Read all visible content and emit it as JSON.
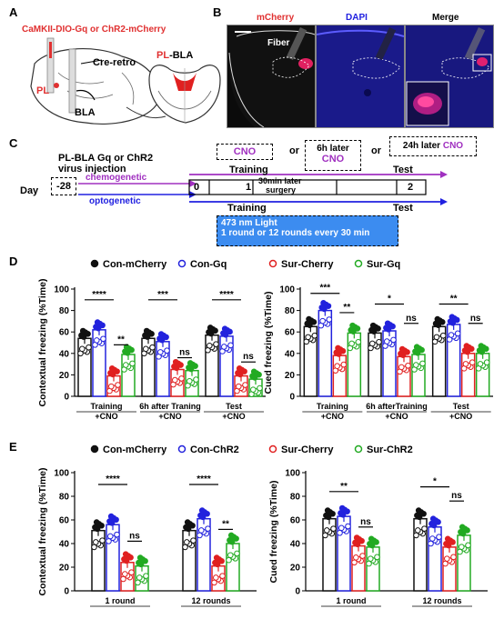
{
  "panels": {
    "a": "A",
    "b": "B",
    "c": "C",
    "d": "D",
    "e": "E"
  },
  "panelA": {
    "title": "CaMKII-DIO-Gq or ChR2-mCherry",
    "creretro": "Cre-retro",
    "pl": "PL",
    "bla": "BLA",
    "plbla_pl": "PL",
    "plbla_rest": "-BLA"
  },
  "panelB": {
    "mcherry": "mCherry",
    "dapi": "DAPI",
    "merge": "Merge",
    "fiber": "Fiber"
  },
  "panelC": {
    "title1": "PL-BLA Gq or ChR2",
    "title2": "virus injection",
    "day": "Day",
    "d28": "-28",
    "chemogenetic": "chemogenetic",
    "optogenetic": "optogenetic",
    "cno1": "CNO",
    "or1": "or",
    "h6": "6h later",
    "cno2": "CNO",
    "or2": "or",
    "h24": "24h later",
    "cno3": "CNO",
    "d0": "0",
    "d1": "1",
    "d2": "2",
    "training1": "Training",
    "test1": "Test",
    "surgery1": "30min later",
    "surgery2": "surgery",
    "training2": "Training",
    "test2": "Test",
    "light1": "473 nm Light",
    "light2": "1 round or 12 rounds every 30 min"
  },
  "colors": {
    "con": "#111111",
    "gq": "#2222dd",
    "cherry": "#e02020",
    "sur": "#22aa22",
    "lightbox": "#3c8cf0"
  },
  "chart_data": [
    {
      "id": "D-left",
      "type": "bar",
      "ylabel": "Contextual freezing (%Time)",
      "ylim": [
        0,
        100
      ],
      "yticks": [
        0,
        20,
        40,
        60,
        80,
        100
      ],
      "legend": [
        "Con-mCherry",
        "Con-Gq",
        "Sur-Cherry",
        "Sur-Gq"
      ],
      "groups": [
        "Training\n+CNO",
        "6h after Traning\n+CNO",
        "Test\n+CNO"
      ],
      "series": [
        {
          "name": "Con-mCherry",
          "values": [
            54,
            54,
            57
          ]
        },
        {
          "name": "Con-Gq",
          "values": [
            62,
            51,
            56
          ]
        },
        {
          "name": "Sur-Cherry",
          "values": [
            19,
            25,
            19
          ]
        },
        {
          "name": "Sur-Gq",
          "values": [
            39,
            24,
            16
          ]
        }
      ],
      "sig": [
        {
          "g": 0,
          "a": 0,
          "b": 2,
          "label": "****",
          "y": 90
        },
        {
          "g": 0,
          "a": 2,
          "b": 3,
          "label": "**",
          "y": 48
        },
        {
          "g": 1,
          "a": 0,
          "b": 2,
          "label": "***",
          "y": 90
        },
        {
          "g": 1,
          "a": 2,
          "b": 3,
          "label": "ns",
          "y": 36
        },
        {
          "g": 2,
          "a": 0,
          "b": 2,
          "label": "****",
          "y": 90
        },
        {
          "g": 2,
          "a": 2,
          "b": 3,
          "label": "ns",
          "y": 32
        }
      ]
    },
    {
      "id": "D-right",
      "type": "bar",
      "ylabel": "Cued freezing (%Time)",
      "ylim": [
        0,
        100
      ],
      "yticks": [
        0,
        20,
        40,
        60,
        80,
        100
      ],
      "groups": [
        "Training\n+CNO",
        "6h afterTraining\n+CNO",
        "Test\n+CNO"
      ],
      "series": [
        {
          "name": "Con-mCherry",
          "values": [
            65,
            59,
            65
          ]
        },
        {
          "name": "Con-Gq",
          "values": [
            80,
            61,
            67
          ]
        },
        {
          "name": "Sur-Cherry",
          "values": [
            38,
            37,
            40
          ]
        },
        {
          "name": "Sur-Gq",
          "values": [
            59,
            39,
            40
          ]
        }
      ],
      "sig": [
        {
          "g": 0,
          "a": 0,
          "b": 2,
          "label": "***",
          "y": 96
        },
        {
          "g": 0,
          "a": 2,
          "b": 3,
          "label": "**",
          "y": 78
        },
        {
          "g": 1,
          "a": 0,
          "b": 2,
          "label": "*",
          "y": 86
        },
        {
          "g": 1,
          "a": 2,
          "b": 3,
          "label": "ns",
          "y": 68
        },
        {
          "g": 2,
          "a": 0,
          "b": 2,
          "label": "**",
          "y": 86
        },
        {
          "g": 2,
          "a": 2,
          "b": 3,
          "label": "ns",
          "y": 68
        }
      ]
    },
    {
      "id": "E-left",
      "type": "bar",
      "ylabel": "Contextual freezing (%Time)",
      "ylim": [
        0,
        100
      ],
      "yticks": [
        0,
        20,
        40,
        60,
        80,
        100
      ],
      "legend": [
        "Con-mCherry",
        "Con-ChR2",
        "Sur-Cherry",
        "Sur-ChR2"
      ],
      "groups": [
        "1 round",
        "12 rounds"
      ],
      "series": [
        {
          "name": "Con-mCherry",
          "values": [
            51,
            51
          ]
        },
        {
          "name": "Con-ChR2",
          "values": [
            56,
            61
          ]
        },
        {
          "name": "Sur-Cherry",
          "values": [
            24,
            21
          ]
        },
        {
          "name": "Sur-ChR2",
          "values": [
            21,
            40
          ]
        }
      ],
      "sig": [
        {
          "g": 0,
          "a": 0,
          "b": 2,
          "label": "****",
          "y": 90
        },
        {
          "g": 0,
          "a": 2,
          "b": 3,
          "label": "ns",
          "y": 42
        },
        {
          "g": 1,
          "a": 0,
          "b": 2,
          "label": "****",
          "y": 90
        },
        {
          "g": 1,
          "a": 2,
          "b": 3,
          "label": "**",
          "y": 52
        }
      ]
    },
    {
      "id": "E-right",
      "type": "bar",
      "ylabel": "Cued freezing (%Time)",
      "ylim": [
        0,
        100
      ],
      "yticks": [
        0,
        20,
        40,
        60,
        80,
        100
      ],
      "groups": [
        "1 round",
        "12 rounds"
      ],
      "series": [
        {
          "name": "Con-mCherry",
          "values": [
            61,
            61
          ]
        },
        {
          "name": "Con-ChR2",
          "values": [
            63,
            54
          ]
        },
        {
          "name": "Sur-Cherry",
          "values": [
            38,
            37
          ]
        },
        {
          "name": "Sur-ChR2",
          "values": [
            37,
            47
          ]
        }
      ],
      "sig": [
        {
          "g": 0,
          "a": 0,
          "b": 2,
          "label": "**",
          "y": 84
        },
        {
          "g": 0,
          "a": 2,
          "b": 3,
          "label": "ns",
          "y": 54
        },
        {
          "g": 1,
          "a": 0,
          "b": 2,
          "label": "*",
          "y": 88
        },
        {
          "g": 1,
          "a": 2,
          "b": 3,
          "label": "ns",
          "y": 76
        }
      ]
    }
  ]
}
